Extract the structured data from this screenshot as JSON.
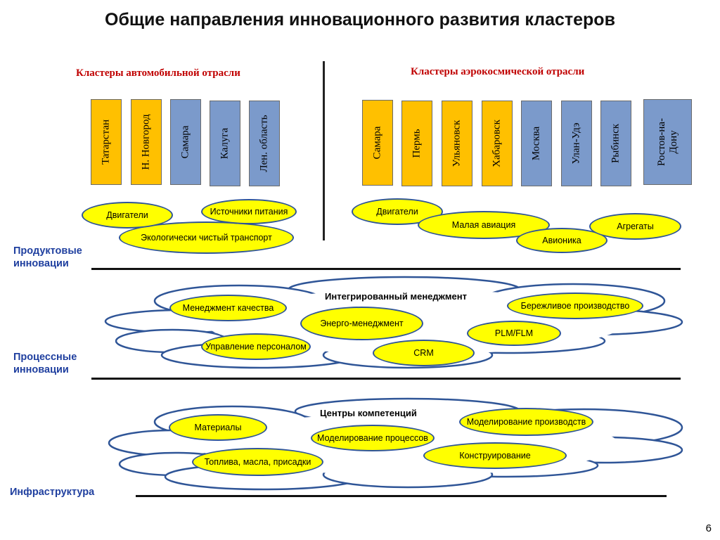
{
  "title": "Общие направления инновационного развития кластеров",
  "auto": {
    "heading": "Кластеры автомобильной отрасли",
    "clusters": [
      "Татарстан",
      "Н. Новгород",
      "Самара",
      "Калуга",
      "Лен. область"
    ],
    "innovations": [
      "Двигатели",
      "Источники питания",
      "Экологически чистый транспорт"
    ]
  },
  "aero": {
    "heading": "Кластеры аэрокосмической отрасли",
    "clusters": [
      "Самара",
      "Пермь",
      "Ульяновск",
      "Хабаровск",
      "Москва",
      "Улан-Удэ",
      "Рыбинск",
      "Ростов-на-Дону"
    ],
    "innovations": [
      "Двигатели",
      "Малая авиация",
      "Авионика",
      "Агрегаты"
    ]
  },
  "rows": {
    "product": "Продуктовые инновации",
    "process": "Процессные инновации",
    "infra": "Инфраструктура"
  },
  "process_cloud": {
    "title": "Интегрированный менеджмент",
    "items": [
      "Менеджмент качества",
      "Энерго-менеджмент",
      "Бережливое производство",
      "PLM/FLM",
      "Управление персоналом",
      "CRM"
    ]
  },
  "infra_cloud": {
    "title": "Центры компетенций",
    "items": [
      "Материалы",
      "Моделирование процессов",
      "Моделирование производств",
      "Конструирование",
      "Топлива, масла, присадки"
    ]
  },
  "page_number": "6",
  "colors": {
    "orange": "#ffc000",
    "blue": "#7b9acb",
    "pill": "#ffff00",
    "outline": "#2f5597",
    "heading": "#c00000",
    "label": "#1f3f9f"
  }
}
